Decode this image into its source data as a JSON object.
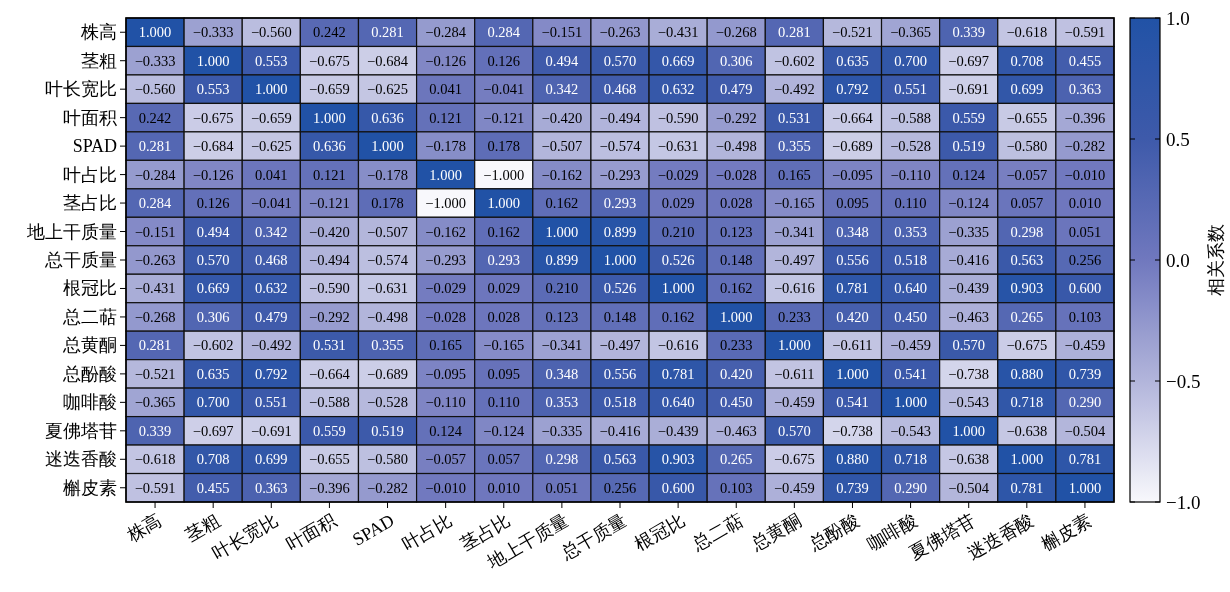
{
  "chart_data": {
    "type": "heatmap",
    "clabel": "相关系数",
    "categories": [
      "株高",
      "茎粗",
      "叶长宽比",
      "叶面积",
      "SPAD",
      "叶占比",
      "茎占比",
      "地上干质量",
      "总干质量",
      "根冠比",
      "总二萜",
      "总黄酮",
      "总酚酸",
      "咖啡酸",
      "夏佛塔苷",
      "迷迭香酸",
      "槲皮素"
    ],
    "y_categories": [
      "株高",
      "茎粗",
      "叶长宽比",
      "叶面积",
      "SPAD",
      "叶占比",
      "茎占比",
      "地上干质量",
      "总干质量",
      "根冠比",
      "总二萜",
      "总黄酮",
      "总酚酸",
      "咖啡酸",
      "夏佛塔苷",
      "迷迭香酸",
      "槲皮素"
    ],
    "cells": [
      [
        1.0,
        -0.333,
        -0.56,
        0.242,
        0.281,
        -0.284,
        0.284,
        -0.151,
        -0.263,
        -0.431,
        -0.268,
        0.281,
        -0.521,
        -0.365,
        0.339,
        -0.618,
        -0.591
      ],
      [
        -0.333,
        1.0,
        0.553,
        -0.675,
        -0.684,
        -0.126,
        0.126,
        0.494,
        0.57,
        0.669,
        0.306,
        -0.602,
        0.635,
        0.7,
        -0.697,
        0.708,
        0.455
      ],
      [
        -0.56,
        0.553,
        1.0,
        -0.659,
        -0.625,
        0.041,
        -0.041,
        0.342,
        0.468,
        0.632,
        0.479,
        -0.492,
        0.792,
        0.551,
        -0.691,
        0.699,
        0.363
      ],
      [
        0.242,
        -0.675,
        -0.659,
        1.0,
        0.636,
        0.121,
        -0.121,
        -0.42,
        -0.494,
        -0.59,
        -0.292,
        0.531,
        -0.664,
        -0.588,
        0.559,
        -0.655,
        -0.396
      ],
      [
        0.281,
        -0.684,
        -0.625,
        0.636,
        1.0,
        -0.178,
        0.178,
        -0.507,
        -0.574,
        -0.631,
        -0.498,
        0.355,
        -0.689,
        -0.528,
        0.519,
        -0.58,
        -0.282
      ],
      [
        -0.284,
        -0.126,
        0.041,
        0.121,
        -0.178,
        1.0,
        -1.0,
        -0.162,
        -0.293,
        -0.029,
        -0.028,
        0.165,
        -0.095,
        -0.11,
        0.124,
        -0.057,
        -0.01
      ],
      [
        0.284,
        0.126,
        -0.041,
        -0.121,
        0.178,
        -1.0,
        1.0,
        0.162,
        0.293,
        0.029,
        0.028,
        -0.165,
        0.095,
        0.11,
        -0.124,
        0.057,
        0.01
      ],
      [
        -0.151,
        0.494,
        0.342,
        -0.42,
        -0.507,
        -0.162,
        0.162,
        1.0,
        0.899,
        0.21,
        0.123,
        -0.341,
        0.348,
        0.353,
        -0.335,
        0.298,
        0.051
      ],
      [
        -0.263,
        0.57,
        0.468,
        -0.494,
        -0.574,
        -0.293,
        0.293,
        0.899,
        1.0,
        0.526,
        0.148,
        -0.497,
        0.556,
        0.518,
        -0.416,
        0.563,
        0.256
      ],
      [
        -0.431,
        0.669,
        0.632,
        -0.59,
        -0.631,
        -0.029,
        0.029,
        0.21,
        0.526,
        1.0,
        0.162,
        -0.616,
        0.781,
        0.64,
        -0.439,
        0.903,
        0.6
      ],
      [
        -0.268,
        0.306,
        0.479,
        -0.292,
        -0.498,
        -0.028,
        0.028,
        0.123,
        0.148,
        0.162,
        1.0,
        0.233,
        0.42,
        0.45,
        -0.463,
        0.265,
        0.103
      ],
      [
        0.281,
        -0.602,
        -0.492,
        0.531,
        0.355,
        0.165,
        -0.165,
        -0.341,
        -0.497,
        -0.616,
        0.233,
        1.0,
        -0.611,
        -0.459,
        0.57,
        -0.675,
        -0.459
      ],
      [
        -0.521,
        0.635,
        0.792,
        -0.664,
        -0.689,
        -0.095,
        0.095,
        0.348,
        0.556,
        0.781,
        0.42,
        -0.611,
        1.0,
        0.541,
        -0.738,
        0.88,
        0.739
      ],
      [
        -0.365,
        0.7,
        0.551,
        -0.588,
        -0.528,
        -0.11,
        0.11,
        0.353,
        0.518,
        0.64,
        0.45,
        -0.459,
        0.541,
        1.0,
        -0.543,
        0.718,
        0.29
      ],
      [
        0.339,
        -0.697,
        -0.691,
        0.559,
        0.519,
        0.124,
        -0.124,
        -0.335,
        -0.416,
        -0.439,
        -0.463,
        0.57,
        -0.738,
        -0.543,
        1.0,
        -0.638,
        -0.504
      ],
      [
        -0.618,
        0.708,
        0.699,
        -0.655,
        -0.58,
        -0.057,
        0.057,
        0.298,
        0.563,
        0.903,
        0.265,
        -0.675,
        0.88,
        0.718,
        -0.638,
        1.0,
        0.781
      ],
      [
        -0.591,
        0.455,
        0.363,
        -0.396,
        -0.282,
        -0.01,
        0.01,
        0.051,
        0.256,
        0.6,
        0.103,
        -0.459,
        0.739,
        0.29,
        -0.504,
        0.781,
        1.0
      ]
    ],
    "cell_labels": [
      [
        "1.000",
        "−0.333",
        "−0.560",
        "0.242",
        "0.281",
        "−0.284",
        "0.284",
        "−0.151",
        "−0.263",
        "−0.431",
        "−0.268",
        "0.281",
        "−0.521",
        "−0.365",
        "0.339",
        "−0.618",
        "−0.591"
      ],
      [
        "−0.333",
        "1.000",
        "0.553",
        "−0.675",
        "−0.684",
        "−0.126",
        "0.126",
        "0.494",
        "0.570",
        "0.669",
        "0.306",
        "−0.602",
        "0.635",
        "0.700",
        "−0.697",
        "0.708",
        "0.455"
      ],
      [
        "−0.560",
        "0.553",
        "1.000",
        "−0.659",
        "−0.625",
        "0.041",
        "−0.041",
        "0.342",
        "0.468",
        "0.632",
        "0.479",
        "−0.492",
        "0.792",
        "0.551",
        "−0.691",
        "0.699",
        "0.363"
      ],
      [
        "0.242",
        "−0.675",
        "−0.659",
        "1.000",
        "0.636",
        "0.121",
        "−0.121",
        "−0.420",
        "−0.494",
        "−0.590",
        "−0.292",
        "0.531",
        "−0.664",
        "−0.588",
        "0.559",
        "−0.655",
        "−0.396"
      ],
      [
        "0.281",
        "−0.684",
        "−0.625",
        "0.636",
        "1.000",
        "−0.178",
        "0.178",
        "−0.507",
        "−0.574",
        "−0.631",
        "−0.498",
        "0.355",
        "−0.689",
        "−0.528",
        "0.519",
        "−0.580",
        "−0.282"
      ],
      [
        "−0.284",
        "−0.126",
        "0.041",
        "0.121",
        "−0.178",
        "1.000",
        "−1.000",
        "−0.162",
        "−0.293",
        "−0.029",
        "−0.028",
        "0.165",
        "−0.095",
        "−0.110",
        "0.124",
        "−0.057",
        "−0.010"
      ],
      [
        "0.284",
        "0.126",
        "−0.041",
        "−0.121",
        "0.178",
        "−1.000",
        "1.000",
        "0.162",
        "0.293",
        "0.029",
        "0.028",
        "−0.165",
        "0.095",
        "0.110",
        "−0.124",
        "0.057",
        "0.010"
      ],
      [
        "−0.151",
        "0.494",
        "0.342",
        "−0.420",
        "−0.507",
        "−0.162",
        "0.162",
        "1.000",
        "0.899",
        "0.210",
        "0.123",
        "−0.341",
        "0.348",
        "0.353",
        "−0.335",
        "0.298",
        "0.051"
      ],
      [
        "−0.263",
        "0.570",
        "0.468",
        "−0.494",
        "−0.574",
        "−0.293",
        "0.293",
        "0.899",
        "1.000",
        "0.526",
        "0.148",
        "−0.497",
        "0.556",
        "0.518",
        "−0.416",
        "0.563",
        "0.256"
      ],
      [
        "−0.431",
        "0.669",
        "0.632",
        "−0.590",
        "−0.631",
        "−0.029",
        "0.029",
        "0.210",
        "0.526",
        "1.000",
        "0.162",
        "−0.616",
        "0.781",
        "0.640",
        "−0.439",
        "0.903",
        "0.600"
      ],
      [
        "−0.268",
        "0.306",
        "0.479",
        "−0.292",
        "−0.498",
        "−0.028",
        "0.028",
        "0.123",
        "0.148",
        "0.162",
        "1.000",
        "0.233",
        "0.420",
        "0.450",
        "−0.463",
        "0.265",
        "0.103"
      ],
      [
        "0.281",
        "−0.602",
        "−0.492",
        "0.531",
        "0.355",
        "0.165",
        "−0.165",
        "−0.341",
        "−0.497",
        "−0.616",
        "0.233",
        "1.000",
        "−0.611",
        "−0.459",
        "0.570",
        "−0.675",
        "−0.459"
      ],
      [
        "−0.521",
        "0.635",
        "0.792",
        "−0.664",
        "−0.689",
        "−0.095",
        "0.095",
        "0.348",
        "0.556",
        "0.781",
        "0.420",
        "−0.611",
        "1.000",
        "0.541",
        "−0.738",
        "0.880",
        "0.739"
      ],
      [
        "−0.365",
        "0.700",
        "0.551",
        "−0.588",
        "−0.528",
        "−0.110",
        "0.110",
        "0.353",
        "0.518",
        "0.640",
        "0.450",
        "−0.459",
        "0.541",
        "1.000",
        "−0.543",
        "0.718",
        "0.290"
      ],
      [
        "0.339",
        "−0.697",
        "−0.691",
        "0.559",
        "0.519",
        "0.124",
        "−0.124",
        "−0.335",
        "−0.416",
        "−0.439",
        "−0.463",
        "0.570",
        "−0.738",
        "−0.543",
        "1.000",
        "−0.638",
        "−0.504"
      ],
      [
        "−0.618",
        "0.708",
        "0.699",
        "−0.655",
        "−0.580",
        "−0.057",
        "0.057",
        "0.298",
        "0.563",
        "0.903",
        "0.265",
        "−0.675",
        "0.880",
        "0.718",
        "−0.638",
        "1.000",
        "0.781"
      ],
      [
        "−0.591",
        "0.455",
        "0.363",
        "−0.396",
        "−0.282",
        "−0.010",
        "0.010",
        "0.051",
        "0.256",
        "0.600",
        "0.103",
        "−0.459",
        "0.739",
        "0.290",
        "−0.504",
        "0.781",
        "1.000"
      ]
    ],
    "clim": [
      -1,
      1
    ],
    "cticks": [
      {
        "value": 1,
        "label": "1.0"
      },
      {
        "value": 0.5,
        "label": "0.5"
      },
      {
        "value": 0,
        "label": "0.0"
      },
      {
        "value": -0.5,
        "label": "−0.5"
      },
      {
        "value": -1,
        "label": "−1.0"
      }
    ]
  }
}
